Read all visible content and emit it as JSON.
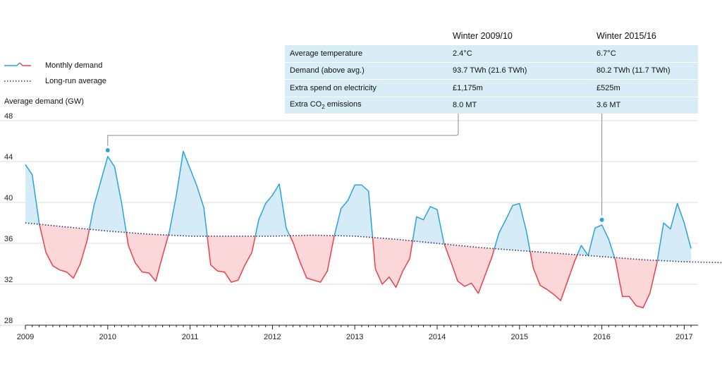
{
  "legend": {
    "monthly_label": "Monthly demand",
    "average_label": "Long-run average"
  },
  "ylabel": "Average demand (GW)",
  "table": {
    "headers": [
      "",
      "Winter 2009/10",
      "Winter 2015/16"
    ],
    "rows": [
      {
        "label": "Average temperature",
        "v1": "2.4°C",
        "v2": "6.7°C"
      },
      {
        "label": "Demand (above avg.)",
        "v1": "93.7 TWh (21.6 TWh)",
        "v2": "80.2 TWh (11.7 TWh)"
      },
      {
        "label": "Extra spend on electricity",
        "v1": "£1,175m",
        "v2": "£525m"
      },
      {
        "label_main": "Extra CO",
        "label_sub": "2",
        "label_tail": " emissions",
        "v1": "8.0 MT",
        "v2": "3.6 MT"
      }
    ]
  },
  "colors": {
    "above": "#29a3dc",
    "above_fill": "#d5ecf8",
    "below": "#e8414a",
    "below_fill": "#fbd7d9",
    "average": "#2b2d6e",
    "grid": "#dddddd",
    "table_bg": "#d8edf6"
  },
  "chart_data": {
    "type": "area",
    "x_start": "2009-01",
    "x_ticks": [
      "2009",
      "2010",
      "2011",
      "2012",
      "2013",
      "2014",
      "2015",
      "2016",
      "2017"
    ],
    "ylim": [
      28,
      48
    ],
    "y_ticks": [
      28,
      32,
      36,
      40,
      44,
      48
    ],
    "series": [
      {
        "name": "Monthly demand",
        "values": [
          43.7,
          42.7,
          38.0,
          35.1,
          33.8,
          33.4,
          33.2,
          32.6,
          34.0,
          36.3,
          39.7,
          42.1,
          44.5,
          43.5,
          40.0,
          35.8,
          34.1,
          33.2,
          33.1,
          32.3,
          34.8,
          37.2,
          40.7,
          45.0,
          43.3,
          41.6,
          39.5,
          33.9,
          33.3,
          33.2,
          32.2,
          32.4,
          33.9,
          35.1,
          38.3,
          39.9,
          40.7,
          41.8,
          37.5,
          36.1,
          34.2,
          32.6,
          32.4,
          32.2,
          33.3,
          36.7,
          39.4,
          40.2,
          41.7,
          41.7,
          41.1,
          33.5,
          32.0,
          32.7,
          31.7,
          33.3,
          34.5,
          38.6,
          38.3,
          39.6,
          39.3,
          36.0,
          34.2,
          32.3,
          31.8,
          32.1,
          31.1,
          32.9,
          34.7,
          37.0,
          38.3,
          39.7,
          39.9,
          37.2,
          33.6,
          31.9,
          31.5,
          31.0,
          30.4,
          32.3,
          34.2,
          35.8,
          34.8,
          37.5,
          37.8,
          36.4,
          34.3,
          30.8,
          30.8,
          29.9,
          29.7,
          31.1,
          34.0,
          38.0,
          37.4,
          39.9,
          38.0,
          35.5
        ]
      },
      {
        "name": "Long-run average",
        "values": [
          38.0,
          37.6,
          37.2,
          36.9,
          36.7,
          36.7,
          36.7,
          36.8,
          36.7,
          36.4,
          36.0,
          35.6,
          35.3,
          35.0,
          34.7,
          34.4,
          34.2,
          34.1,
          34.1
        ]
      }
    ],
    "highlights": [
      {
        "label": "Winter 2009/10",
        "x": "2010-01",
        "y": 45.1
      },
      {
        "label": "Winter 2015/16",
        "x": "2016-01",
        "y": 38.3
      }
    ],
    "grid": true,
    "legend_position": "top-left"
  }
}
